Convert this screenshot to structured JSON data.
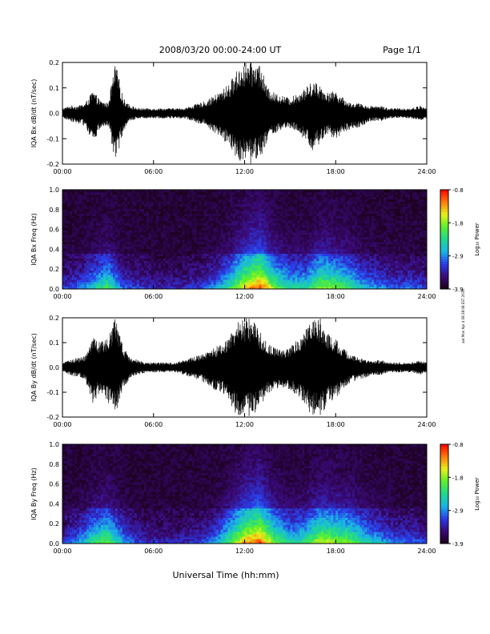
{
  "header": {
    "title": "2008/03/20  00:00-24:00 UT",
    "page": "Page 1/1"
  },
  "side_note": "aot Mon Apr 4 08:38:08 EST 2016",
  "xaxis_label": "Universal Time (hh:mm)",
  "colors": {
    "trace": "#000000",
    "colorbar_stops": [
      "#1a0018",
      "#3a0a78",
      "#2a3ce8",
      "#1ab4e6",
      "#20d890",
      "#5cf02c",
      "#e8f01c",
      "#ff7a0a",
      "#ff0000"
    ]
  },
  "chart_data": [
    {
      "type": "line",
      "ylabel": "IQA Bx dB/dt (nT/sec)",
      "xlim": [
        0,
        24
      ],
      "ylim": [
        -0.2,
        0.2
      ],
      "xticks": [
        "00:00",
        "06:00",
        "12:00",
        "18:00",
        "24:00"
      ],
      "yticks": [
        "-0.2",
        "-0.1",
        "0.0",
        "0.1",
        "0.2"
      ],
      "series": [
        {
          "x": [
            0,
            0.5,
            1,
            1.5,
            2,
            2.5,
            3,
            3.5,
            4,
            4.5,
            5,
            5.5,
            6,
            6.5,
            7,
            7.5,
            8,
            8.5,
            9,
            9.5,
            10,
            10.5,
            11,
            11.5,
            12,
            12.5,
            13,
            13.5,
            14,
            14.5,
            15,
            15.5,
            16,
            16.5,
            17,
            17.5,
            18,
            18.5,
            19,
            19.5,
            20,
            20.5,
            21,
            21.5,
            22,
            22.5,
            23,
            23.5,
            24
          ],
          "upper": [
            0.02,
            0.03,
            0.03,
            0.04,
            0.09,
            0.05,
            0.04,
            0.2,
            0.06,
            0.03,
            0.02,
            0.02,
            0.02,
            0.02,
            0.02,
            0.02,
            0.02,
            0.03,
            0.04,
            0.05,
            0.07,
            0.09,
            0.12,
            0.17,
            0.2,
            0.2,
            0.2,
            0.1,
            0.08,
            0.07,
            0.06,
            0.08,
            0.1,
            0.13,
            0.11,
            0.08,
            0.09,
            0.06,
            0.04,
            0.04,
            0.03,
            0.03,
            0.03,
            0.02,
            0.02,
            0.02,
            0.02,
            0.03,
            0.02
          ],
          "lower": [
            -0.02,
            -0.03,
            -0.04,
            -0.05,
            -0.12,
            -0.06,
            -0.05,
            -0.2,
            -0.07,
            -0.03,
            -0.02,
            -0.02,
            -0.02,
            -0.02,
            -0.02,
            -0.02,
            -0.02,
            -0.03,
            -0.04,
            -0.05,
            -0.08,
            -0.1,
            -0.13,
            -0.18,
            -0.2,
            -0.2,
            -0.18,
            -0.11,
            -0.08,
            -0.07,
            -0.06,
            -0.08,
            -0.11,
            -0.15,
            -0.12,
            -0.09,
            -0.1,
            -0.08,
            -0.06,
            -0.06,
            -0.04,
            -0.03,
            -0.03,
            -0.02,
            -0.02,
            -0.02,
            -0.02,
            -0.03,
            -0.02
          ]
        }
      ]
    },
    {
      "type": "heatmap",
      "ylabel": "IQA Bx Freq (Hz)",
      "colorbar_label": "Log₁₀ Power",
      "colorbar_ticks": [
        "-0.8",
        "-1.8",
        "-2.9",
        "-3.9"
      ],
      "xlim": [
        0,
        24
      ],
      "ylim": [
        0,
        1
      ],
      "xticks": [
        "00:00",
        "06:00",
        "12:00",
        "18:00",
        "24:00"
      ],
      "yticks": [
        "0.0",
        "0.2",
        "0.4",
        "0.6",
        "0.8",
        "1.0"
      ],
      "activity_times": [
        0,
        1,
        2,
        3,
        4,
        5,
        6,
        7,
        8,
        9,
        10,
        11,
        12,
        13,
        14,
        15,
        16,
        17,
        18,
        19,
        20,
        21,
        22,
        23,
        24
      ],
      "activity": [
        0.2,
        0.25,
        0.4,
        0.55,
        0.25,
        0.2,
        0.15,
        0.15,
        0.15,
        0.2,
        0.3,
        0.5,
        0.75,
        0.9,
        0.6,
        0.45,
        0.45,
        0.65,
        0.6,
        0.5,
        0.35,
        0.3,
        0.25,
        0.25,
        0.2
      ]
    },
    {
      "type": "line",
      "ylabel": "IQA By dB/dt (nT/sec)",
      "xlim": [
        0,
        24
      ],
      "ylim": [
        -0.2,
        0.2
      ],
      "xticks": [
        "00:00",
        "06:00",
        "12:00",
        "18:00",
        "24:00"
      ],
      "yticks": [
        "-0.2",
        "-0.1",
        "0.0",
        "0.1",
        "0.2"
      ],
      "series": [
        {
          "x": [
            0,
            0.5,
            1,
            1.5,
            2,
            2.5,
            3,
            3.5,
            4,
            4.5,
            5,
            5.5,
            6,
            6.5,
            7,
            7.5,
            8,
            8.5,
            9,
            9.5,
            10,
            10.5,
            11,
            11.5,
            12,
            12.5,
            13,
            13.5,
            14,
            14.5,
            15,
            15.5,
            16,
            16.5,
            17,
            17.5,
            18,
            18.5,
            19,
            19.5,
            20,
            20.5,
            21,
            21.5,
            22,
            22.5,
            23,
            23.5,
            24
          ],
          "upper": [
            0.02,
            0.03,
            0.04,
            0.05,
            0.12,
            0.1,
            0.13,
            0.2,
            0.08,
            0.04,
            0.03,
            0.02,
            0.02,
            0.02,
            0.02,
            0.02,
            0.03,
            0.04,
            0.05,
            0.06,
            0.08,
            0.1,
            0.12,
            0.2,
            0.2,
            0.2,
            0.15,
            0.1,
            0.08,
            0.07,
            0.08,
            0.12,
            0.15,
            0.2,
            0.2,
            0.14,
            0.12,
            0.08,
            0.05,
            0.04,
            0.03,
            0.03,
            0.03,
            0.02,
            0.02,
            0.02,
            0.02,
            0.03,
            0.02
          ],
          "lower": [
            -0.02,
            -0.03,
            -0.04,
            -0.05,
            -0.15,
            -0.1,
            -0.14,
            -0.2,
            -0.09,
            -0.04,
            -0.03,
            -0.02,
            -0.02,
            -0.02,
            -0.02,
            -0.02,
            -0.03,
            -0.04,
            -0.05,
            -0.07,
            -0.09,
            -0.1,
            -0.14,
            -0.2,
            -0.2,
            -0.2,
            -0.16,
            -0.11,
            -0.09,
            -0.08,
            -0.09,
            -0.12,
            -0.16,
            -0.2,
            -0.2,
            -0.15,
            -0.13,
            -0.09,
            -0.06,
            -0.05,
            -0.04,
            -0.03,
            -0.03,
            -0.02,
            -0.02,
            -0.02,
            -0.02,
            -0.03,
            -0.02
          ]
        }
      ]
    },
    {
      "type": "heatmap",
      "ylabel": "IQA By Freq (Hz)",
      "colorbar_label": "Log₁₀ Power",
      "colorbar_ticks": [
        "-0.8",
        "-1.8",
        "-2.9",
        "-3.9"
      ],
      "xlim": [
        0,
        24
      ],
      "ylim": [
        0,
        1
      ],
      "xticks": [
        "00:00",
        "06:00",
        "12:00",
        "18:00",
        "24:00"
      ],
      "yticks": [
        "0.0",
        "0.2",
        "0.4",
        "0.6",
        "0.8",
        "1.0"
      ],
      "activity_times": [
        0,
        1,
        2,
        3,
        4,
        5,
        6,
        7,
        8,
        9,
        10,
        11,
        12,
        13,
        14,
        15,
        16,
        17,
        18,
        19,
        20,
        21,
        22,
        23,
        24
      ],
      "activity": [
        0.2,
        0.3,
        0.5,
        0.6,
        0.35,
        0.2,
        0.15,
        0.15,
        0.15,
        0.2,
        0.3,
        0.55,
        0.8,
        0.9,
        0.6,
        0.45,
        0.5,
        0.7,
        0.65,
        0.6,
        0.45,
        0.35,
        0.25,
        0.25,
        0.2
      ]
    }
  ]
}
